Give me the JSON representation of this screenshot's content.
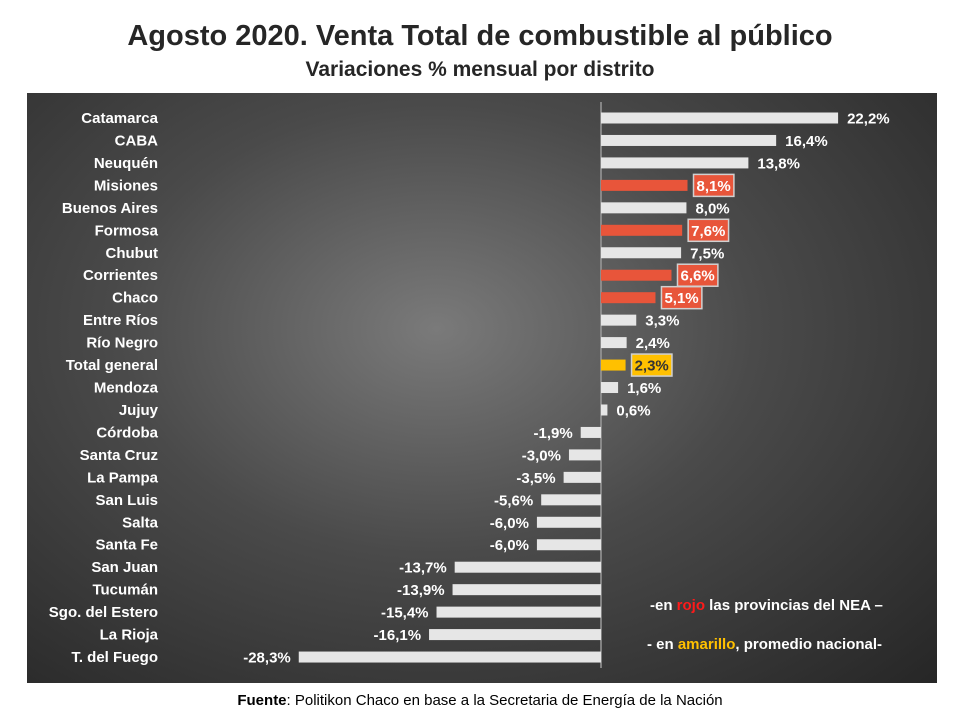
{
  "chart_data": {
    "type": "bar",
    "orientation": "horizontal",
    "title": "Agosto 2020. Venta Total de combustible al público",
    "subtitle": "Variaciones % mensual por distrito",
    "categories": [
      "Catamarca",
      "CABA",
      "Neuquén",
      "Misiones",
      "Buenos Aires",
      "Formosa",
      "Chubut",
      "Corrientes",
      "Chaco",
      "Entre Ríos",
      "Río Negro",
      "Total general",
      "Mendoza",
      "Jujuy",
      "Córdoba",
      "Santa Cruz",
      "La Pampa",
      "San Luis",
      "Salta",
      "Santa Fe",
      "San Juan",
      "Tucumán",
      "Sgo. del Estero",
      "La Rioja",
      "T. del Fuego"
    ],
    "values": [
      22.2,
      16.4,
      13.8,
      8.1,
      8.0,
      7.6,
      7.5,
      6.6,
      5.1,
      3.3,
      2.4,
      2.3,
      1.6,
      0.6,
      -1.9,
      -3.0,
      -3.5,
      -5.6,
      -6.0,
      -6.0,
      -13.7,
      -13.9,
      -15.4,
      -16.1,
      -28.3
    ],
    "labels": [
      "22,2%",
      "16,4%",
      "13,8%",
      "8,1%",
      "8,0%",
      "7,6%",
      "7,5%",
      "6,6%",
      "5,1%",
      "3,3%",
      "2,4%",
      "2,3%",
      "1,6%",
      "0,6%",
      "-1,9%",
      "-3,0%",
      "-3,5%",
      "-5,6%",
      "-6,0%",
      "-6,0%",
      "-13,7%",
      "-13,9%",
      "-15,4%",
      "-16,1%",
      "-28,3%"
    ],
    "groups": [
      "other",
      "other",
      "other",
      "nea",
      "other",
      "nea",
      "other",
      "nea",
      "nea",
      "other",
      "other",
      "average",
      "other",
      "other",
      "other",
      "other",
      "other",
      "other",
      "other",
      "other",
      "other",
      "other",
      "other",
      "other",
      "other"
    ],
    "colors": {
      "other": "#e6e6e6",
      "nea": "#e8553a",
      "average": "#ffc000"
    },
    "xlim": [
      -28.3,
      31
    ],
    "xlabel": "",
    "ylabel": "",
    "grid": false
  },
  "legend": {
    "line1_pre": "-en ",
    "line1_red": "rojo",
    "line1_post": " las provincias del NEA –",
    "line2_pre": "- en ",
    "line2_yellow": "amarillo",
    "line2_post": ", promedio nacional-"
  },
  "source": {
    "bold": "Fuente",
    "text": ": Politikon Chaco en base a la Secretaria de Energía de la Nación"
  }
}
